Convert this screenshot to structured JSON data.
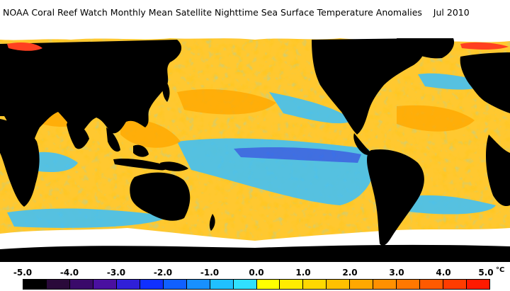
{
  "title": "NOAA Coral Reef Watch Monthly Mean Satellite Nighttime Sea Surface Temperature Anomalies    Jul 2010",
  "legend": {
    "unit": "°C",
    "ticks": [
      "-5.0",
      "-4.0",
      "-3.0",
      "-2.0",
      "-1.0",
      "0.0",
      "1.0",
      "2.0",
      "3.0",
      "4.0",
      "5.0"
    ],
    "colors": [
      "#000000",
      "#2a0a3a",
      "#3a0a6a",
      "#4a10a0",
      "#3020d8",
      "#1030ff",
      "#1060ff",
      "#1890ff",
      "#20c0ff",
      "#30e0ff",
      "#ffff00",
      "#ffec00",
      "#ffd800",
      "#ffc000",
      "#ffa800",
      "#ff9000",
      "#ff7800",
      "#ff5a00",
      "#ff3c00",
      "#ff1a00"
    ]
  },
  "colors": {
    "land": "#000000",
    "ice": "#ffffff",
    "warm_anomaly": "#ffc000",
    "cool_anomaly": "#30c8ff"
  }
}
